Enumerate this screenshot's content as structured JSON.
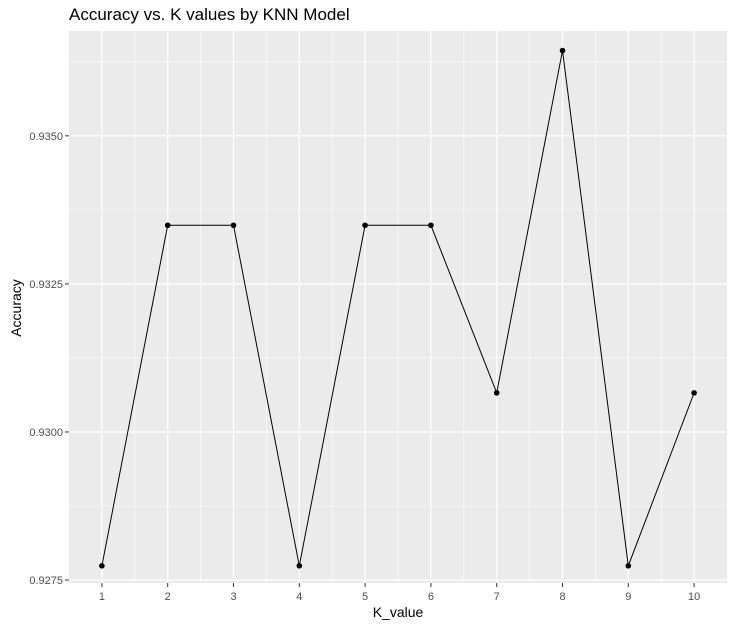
{
  "chart_data": {
    "type": "line",
    "title": "Accuracy vs. K values by KNN Model",
    "xlabel": "K_value",
    "ylabel": "Accuracy",
    "x": [
      1,
      2,
      3,
      4,
      5,
      6,
      7,
      8,
      9,
      10
    ],
    "y": [
      0.92774,
      0.93349,
      0.93349,
      0.92774,
      0.93349,
      0.93349,
      0.93066,
      0.93644,
      0.92774,
      0.93066
    ],
    "xlim": [
      0.5,
      10.5
    ],
    "ylim": [
      0.92745,
      0.93677
    ],
    "xticks": [
      1,
      2,
      3,
      4,
      5,
      6,
      7,
      8,
      9,
      10
    ],
    "yticks": [
      0.9275,
      0.93,
      0.9325,
      0.935
    ],
    "yticklabels": [
      "0.9275",
      "0.9300",
      "0.9325",
      "0.9350"
    ],
    "grid": true,
    "background": "#EBEBEB",
    "grid_color": "#FFFFFF",
    "line_color": "#000000",
    "point_color": "#000000"
  }
}
